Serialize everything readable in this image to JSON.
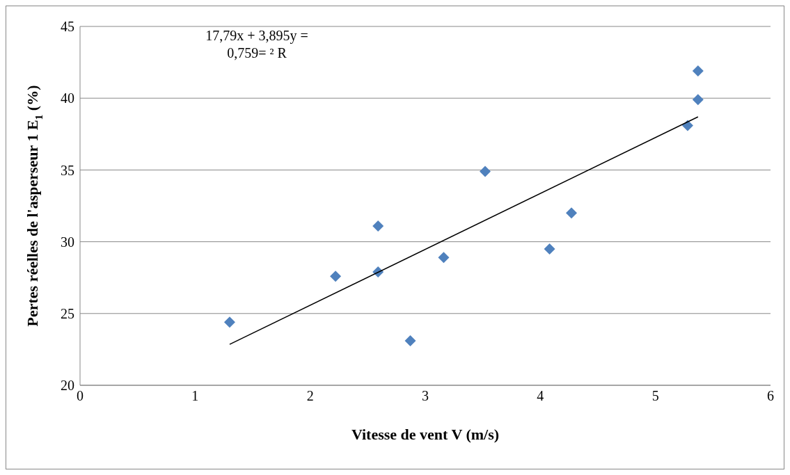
{
  "chart_data": {
    "type": "scatter",
    "xlabel": "Vitesse de vent V (m/s)",
    "ylabel": "Pertes réelles de l'asperseur 1 E$_{1}$ (%)",
    "annotations": [
      "17,79x + 3,895y =",
      "0,759= ² R"
    ],
    "xlim": [
      0,
      6
    ],
    "xticks": [
      0,
      1,
      2,
      3,
      4,
      5,
      6
    ],
    "ylim": [
      20,
      45
    ],
    "yticks": [
      20,
      25,
      30,
      35,
      40,
      45
    ],
    "grid": "y",
    "legend": false,
    "marker": "diamond",
    "series": [
      {
        "color": "#4f81bd",
        "x": [
          1.3,
          2.22,
          2.59,
          2.59,
          2.87,
          3.16,
          3.52,
          4.08,
          4.27,
          5.28,
          5.37,
          5.37
        ],
        "values": [
          24.4,
          27.6,
          31.1,
          27.9,
          23.1,
          28.9,
          34.9,
          29.5,
          32.0,
          38.1,
          39.9,
          41.9
        ]
      },
      {
        "type": "line",
        "color": "#000000",
        "marker": "none",
        "x": [
          1.3,
          5.37
        ],
        "values": [
          22.85,
          38.7
        ]
      }
    ]
  }
}
